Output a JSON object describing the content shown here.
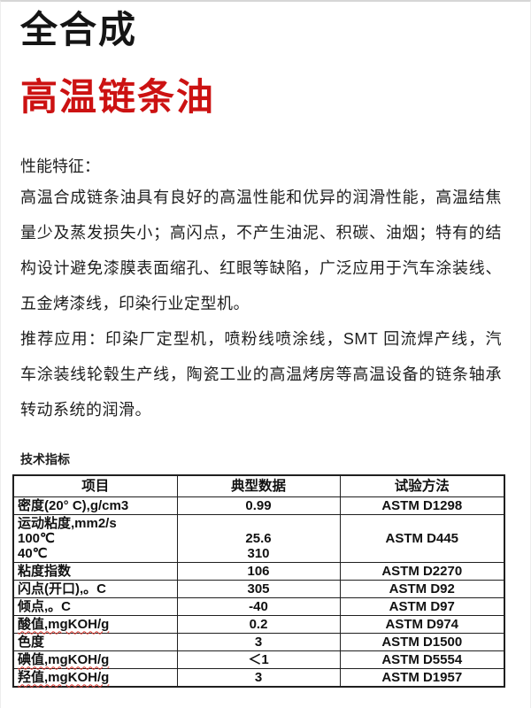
{
  "titles": {
    "product_line": "全合成",
    "product_name": "高温链条油"
  },
  "colors": {
    "accent_red": "#cc1212"
  },
  "performance": {
    "heading": "性能特征：",
    "paragraph1": "高温合成链条油具有良好的高温性能和优异的润滑性能，高温结焦量少及蒸发损失小；高闪点，不产生油泥、积碳、油烟；特有的结构设计避免漆膜表面缩孔、红眼等缺陷，广泛应用于汽车涂装线、五金烤漆线，印染行业定型机。",
    "paragraph2": "推荐应用：印染厂定型机，喷粉线喷涂线，SMT 回流焊产线，汽车涂装线轮毂生产线，陶瓷工业的高温烤房等高温设备的链条轴承转动系统的润滑。"
  },
  "spec_table": {
    "caption": "技术指标",
    "headers": [
      "项目",
      "典型数据",
      "试验方法"
    ],
    "rows": [
      {
        "item": "密度(20° C),g/cm3",
        "value": "0.99",
        "method": "ASTM D1298"
      },
      {
        "item": "运动粘度,mm2/s\n100℃\n40℃",
        "value": "\n25.6\n310",
        "method": "ASTM D445",
        "multiline": true
      },
      {
        "item": "粘度指数",
        "value": "106",
        "method": "ASTM D2270"
      },
      {
        "item": "闪点(开口),。C",
        "value": "305",
        "method": "ASTM D92"
      },
      {
        "item": "倾点,。C",
        "value": "-40",
        "method": "ASTM D97"
      },
      {
        "item": "酸值,mgKOH/g",
        "value": "0.2",
        "method": "ASTM D974",
        "spellcheck": true
      },
      {
        "item": "色度",
        "value": "3",
        "method": "ASTM D1500"
      },
      {
        "item": "碘值,mgKOH/g",
        "value": "＜1",
        "method": "ASTM D5554",
        "spellcheck": true
      },
      {
        "item": "羟值,mgKOH/g",
        "value": "3",
        "method": "ASTM D1957",
        "spellcheck": true
      }
    ]
  }
}
